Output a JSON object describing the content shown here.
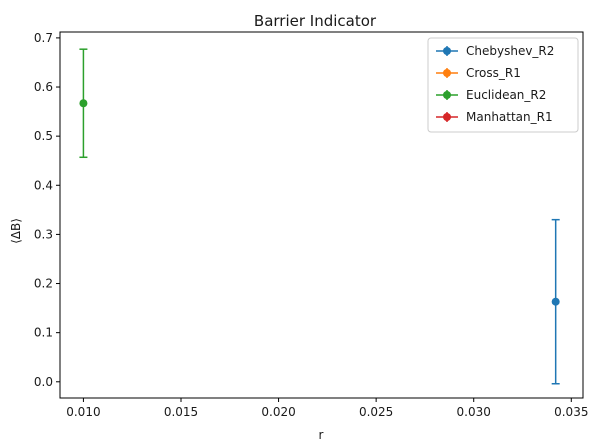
{
  "chart_data": {
    "type": "scatter",
    "title": "Barrier Indicator",
    "xlabel": "r",
    "ylabel": "⟨ΔB⟩",
    "xlim": [
      0.0088,
      0.0356
    ],
    "ylim": [
      -0.033,
      0.712
    ],
    "xticks": [
      "0.010",
      "0.015",
      "0.020",
      "0.025",
      "0.030",
      "0.035"
    ],
    "yticks": [
      "0.0",
      "0.1",
      "0.2",
      "0.3",
      "0.4",
      "0.5",
      "0.6",
      "0.7"
    ],
    "grid": false,
    "legend_position": "top-right",
    "error_bars": true,
    "series": [
      {
        "name": "Chebyshev_R2",
        "color": "#1f77b4",
        "points": [
          {
            "x": 0.0342,
            "y": 0.163,
            "yerr_low": 0.167,
            "yerr_high": 0.167
          }
        ]
      },
      {
        "name": "Cross_R1",
        "color": "#ff7f0e",
        "points": []
      },
      {
        "name": "Euclidean_R2",
        "color": "#2ca02c",
        "points": [
          {
            "x": 0.01,
            "y": 0.567,
            "yerr_low": 0.11,
            "yerr_high": 0.11
          }
        ]
      },
      {
        "name": "Manhattan_R1",
        "color": "#d62728",
        "points": []
      }
    ]
  }
}
